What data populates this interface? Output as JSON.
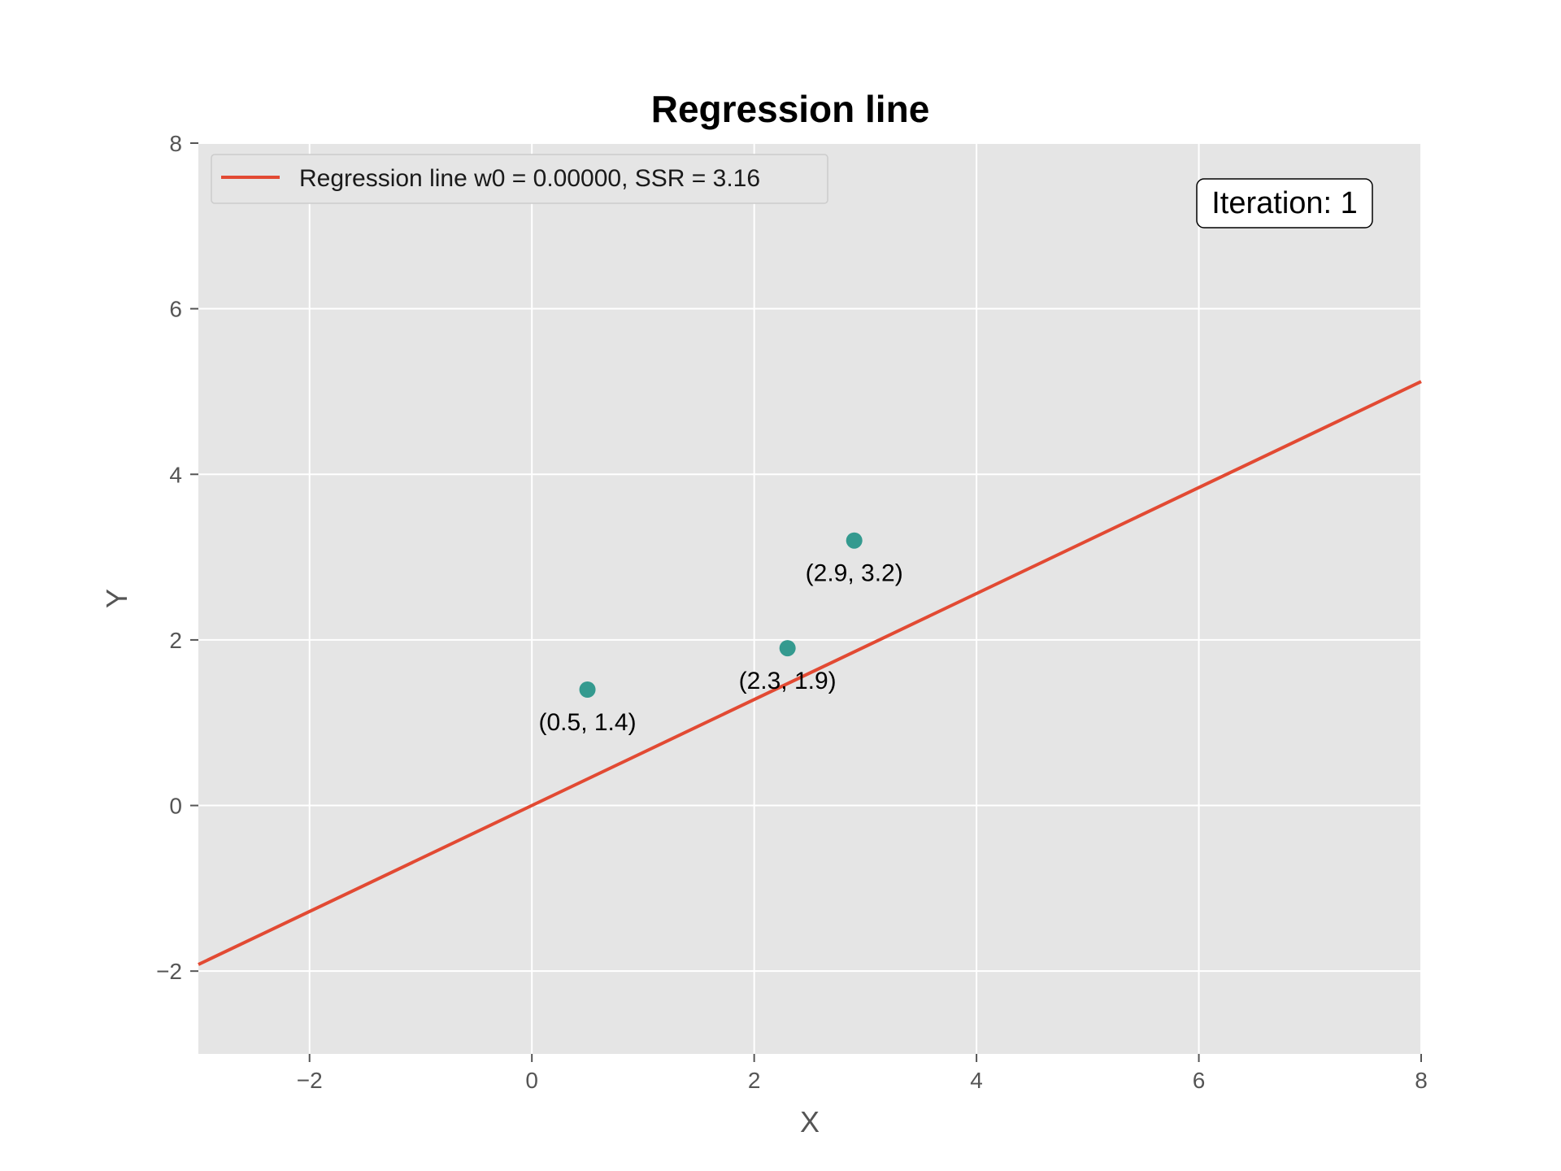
{
  "chart_data": {
    "type": "scatter",
    "title": "Regression line",
    "xlabel": "X",
    "ylabel": "Y",
    "xlim": [
      -3,
      8
    ],
    "ylim": [
      -3,
      8
    ],
    "xticks": [
      -2,
      0,
      2,
      4,
      6,
      8
    ],
    "yticks": [
      -2,
      0,
      2,
      4,
      6,
      8
    ],
    "xtick_labels": [
      "−2",
      "0",
      "2",
      "4",
      "6",
      "8"
    ],
    "ytick_labels": [
      "−2",
      "0",
      "2",
      "4",
      "6",
      "8"
    ],
    "grid": true,
    "legend_position": "top-left",
    "points": [
      {
        "x": 0.5,
        "y": 1.4,
        "label": "(0.5, 1.4)"
      },
      {
        "x": 2.3,
        "y": 1.9,
        "label": "(2.3, 1.9)"
      },
      {
        "x": 2.9,
        "y": 3.2,
        "label": "(2.9, 3.2)"
      }
    ],
    "regression_line": {
      "label": "Regression line w0 = 0.00000, SSR = 3.16",
      "x": [
        -3,
        8
      ],
      "y": [
        -1.92,
        5.12
      ]
    },
    "annotation": "Iteration: 1",
    "colors": {
      "background": "#e5e5e5",
      "grid": "#ffffff",
      "line": "#e24a33",
      "points": "#349a8f"
    }
  }
}
